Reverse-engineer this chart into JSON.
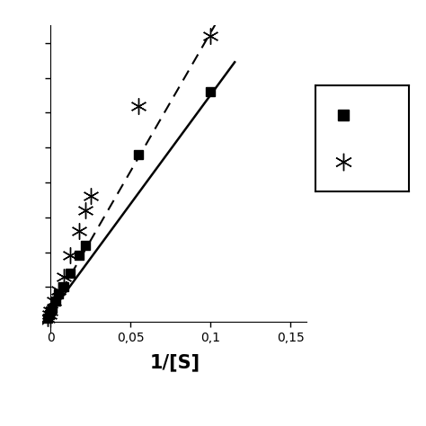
{
  "title": "",
  "xlabel": "1/[S]",
  "ylabel": "",
  "xlim": [
    -0.005,
    0.12
  ],
  "ylim": [
    -0.03,
    0.85
  ],
  "xticks": [
    0,
    0.05,
    0.1
  ],
  "xticklabels": [
    "0",
    "0,05",
    "0,1"
  ],
  "xtick_extra": 0.15,
  "xtick_extra_label": "0,15",
  "square_x": [
    -0.002,
    -0.001,
    0.0,
    0.001,
    0.003,
    0.005,
    0.008,
    0.012,
    0.018,
    0.022,
    0.055,
    0.1
  ],
  "square_y": [
    0.01,
    0.02,
    0.03,
    0.04,
    0.06,
    0.08,
    0.1,
    0.14,
    0.19,
    0.22,
    0.48,
    0.66
  ],
  "star_x": [
    -0.002,
    -0.001,
    0.0,
    0.002,
    0.005,
    0.008,
    0.012,
    0.018,
    0.022,
    0.025,
    0.055,
    0.1
  ],
  "star_y": [
    0.01,
    0.02,
    0.03,
    0.06,
    0.09,
    0.13,
    0.19,
    0.26,
    0.32,
    0.36,
    0.62,
    0.82
  ],
  "solid_line_x": [
    -0.005,
    0.115
  ],
  "solid_line_y": [
    -0.005,
    0.745
  ],
  "dashed_line_x": [
    -0.005,
    0.105
  ],
  "dashed_line_y": [
    -0.005,
    0.87
  ],
  "background_color": "#ffffff",
  "data_color": "#000000",
  "fontsize_xlabel": 15,
  "fontsize_ticks": 12
}
